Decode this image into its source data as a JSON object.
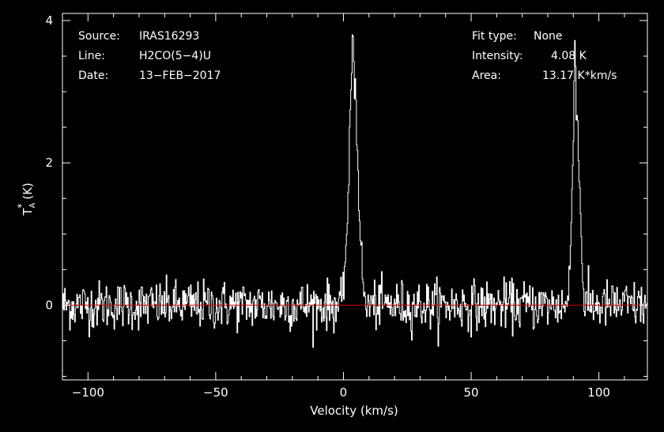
{
  "chart_data": {
    "type": "line",
    "info_left": [
      {
        "key": "Source:",
        "value": "IRAS16293"
      },
      {
        "key": "Line:",
        "value": "H2CO(5−4)U"
      },
      {
        "key": "Date:",
        "value": "13−FEB−2017"
      }
    ],
    "info_right": [
      {
        "key": "Fit type:",
        "value": "None"
      },
      {
        "key": "Intensity:",
        "value": "4.08 K"
      },
      {
        "key": "Area:",
        "value": "13.17 K*km/s"
      }
    ],
    "xlabel": "Velocity (km/s)",
    "ylabel": "T*A (K)",
    "ylabel_main": "T",
    "ylabel_sup": "*",
    "ylabel_sub": "A",
    "ylabel_unit": "(K)",
    "xlim": [
      -110,
      119
    ],
    "ylim": [
      -1.05,
      4.1
    ],
    "x_ticks": [
      -100,
      -50,
      0,
      50,
      100
    ],
    "x_tick_labels": [
      "−100",
      "−50",
      "0",
      "50",
      "100"
    ],
    "y_ticks": [
      0,
      2,
      4
    ],
    "y_tick_labels": [
      "0",
      "2",
      "4"
    ],
    "x_minor_step": 10,
    "y_minor_step": 0.5,
    "baseline": 0,
    "noise_rms": 0.17,
    "series": [
      {
        "peaks": [
          {
            "x": [
              0,
              1,
              2,
              3,
              3.5,
              4,
              5,
              6,
              7,
              8
            ],
            "y": [
              0.4,
              0.9,
              1.7,
              3.2,
              4.05,
              3.4,
              2.6,
              1.5,
              0.6,
              0.1
            ]
          },
          {
            "x": [
              88,
              89,
              90,
              90.5,
              91,
              92,
              93,
              94
            ],
            "y": [
              0.2,
              1.0,
              2.8,
              3.7,
              3.0,
              2.0,
              1.0,
              0.1
            ]
          }
        ]
      }
    ],
    "colors": {
      "background": "#000000",
      "trace": "#ffffff",
      "baseline": "#cc0000",
      "frame": "#ffffff"
    }
  }
}
